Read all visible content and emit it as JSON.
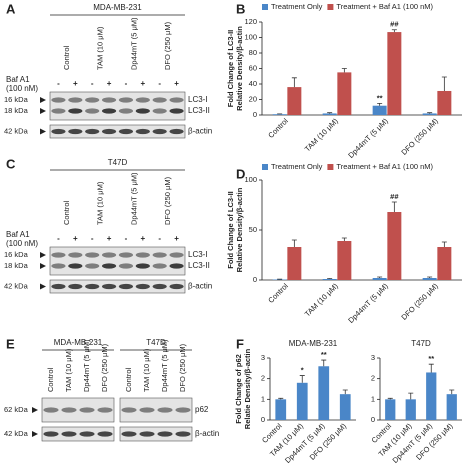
{
  "blots": [
    {
      "letter": "A",
      "groups": [
        {
          "cell_line": "MDA-MB-231",
          "lanes": [
            "Control",
            "TAM (10 μM)",
            "Dp44mT (5 μM)",
            "DFO (250 μM)"
          ]
        }
      ],
      "baf_label": [
        "Baf A1",
        "(100 nM)"
      ],
      "baf_signs": [
        "-",
        "+",
        "-",
        "+",
        "-",
        "+",
        "-",
        "+"
      ],
      "markers": [
        "16 kDa",
        "18 kDa",
        "42 kDa"
      ],
      "bands": [
        "LC3-I",
        "LC3-II",
        "β-actin"
      ]
    },
    {
      "letter": "C",
      "groups": [
        {
          "cell_line": "T47D",
          "lanes": [
            "Control",
            "TAM (10 μM)",
            "Dp44mT (5 μM)",
            "DFO (250 μM)"
          ]
        }
      ],
      "baf_label": [
        "Baf A1",
        "(100 nM)"
      ],
      "baf_signs": [
        "-",
        "+",
        "-",
        "+",
        "-",
        "+",
        "-",
        "+"
      ],
      "markers": [
        "16 kDa",
        "18 kDa",
        "42 kDa"
      ],
      "bands": [
        "LC3-I",
        "LC3-II",
        "β-actin"
      ]
    },
    {
      "letter": "E",
      "groups": [
        {
          "cell_line": "MDA-MB-231",
          "lanes": [
            "Control",
            "TAM (10 μM)",
            "Dp44mT (5 μM)",
            "DFO (250 μM)"
          ]
        },
        {
          "cell_line": "T47D",
          "lanes": [
            "Control",
            "TAM (10 μM)",
            "Dp44mT (5 μM)",
            "DFO (250 μM)"
          ]
        }
      ],
      "markers": [
        "62 kDa",
        "42 kDa"
      ],
      "bands": [
        "p62",
        "β-actin"
      ]
    }
  ],
  "chart_data": [
    {
      "type": "bar",
      "letter": "B",
      "y_label": [
        "Fold Change of LC3-II",
        "Relative Density/β-actin"
      ],
      "categories": [
        "Control",
        "TAM (10 μM)",
        "Dp44mT (5 μM)",
        "DFO (250 μM)"
      ],
      "series": [
        {
          "name": "Treatment Only",
          "color": "#4a86c8",
          "values": [
            1,
            2,
            12,
            2
          ],
          "errors": [
            0.5,
            1,
            3,
            1
          ],
          "annotations": [
            null,
            null,
            "**",
            null
          ]
        },
        {
          "name": "Treatment + Baf A1 (100 nM)",
          "color": "#c0504d",
          "values": [
            36,
            55,
            107,
            31
          ],
          "errors": [
            12,
            5,
            3,
            18
          ],
          "annotations": [
            null,
            null,
            "##",
            null
          ]
        }
      ],
      "ylim": [
        0,
        120
      ],
      "yticks": [
        0,
        20,
        40,
        60,
        80,
        100,
        120
      ]
    },
    {
      "type": "bar",
      "letter": "D",
      "y_label": [
        "Fold Change of LC3-II",
        "Relative Density/β-actin"
      ],
      "categories": [
        "Control",
        "TAM (10 μM)",
        "Dp44mT (5 μM)",
        "DFO (250 μM)"
      ],
      "series": [
        {
          "name": "Treatment Only",
          "color": "#4a86c8",
          "values": [
            0.5,
            1,
            2,
            2
          ],
          "errors": [
            0.3,
            0.5,
            1,
            1
          ],
          "annotations": [
            null,
            null,
            null,
            null
          ]
        },
        {
          "name": "Treatment + Baf A1 (100 nM)",
          "color": "#c0504d",
          "values": [
            33,
            39,
            68,
            33
          ],
          "errors": [
            7,
            3,
            10,
            5
          ],
          "annotations": [
            null,
            null,
            "##",
            null
          ]
        }
      ],
      "ylim": [
        0,
        100
      ],
      "yticks": [
        0,
        50,
        100
      ]
    },
    {
      "type": "bar",
      "letter": "F",
      "title": "MDA-MB-231",
      "y_label": [
        "Fold Change of p62",
        "Relatie Density/β-actin"
      ],
      "categories": [
        "Control",
        "TAM (10 μM)",
        "Dp44mT (5 μM)",
        "DFO (250 μM)"
      ],
      "color": "#4a86c8",
      "values": [
        1,
        1.8,
        2.6,
        1.25
      ],
      "errors": [
        0.05,
        0.35,
        0.3,
        0.2
      ],
      "annotations": [
        null,
        "*",
        "**",
        null
      ],
      "ylim": [
        0,
        3
      ],
      "yticks": [
        0,
        1,
        2,
        3
      ]
    },
    {
      "type": "bar",
      "title": "T47D",
      "categories": [
        "Control",
        "TAM (10 μM)",
        "Dp44mT (5 μM)",
        "DFO (250 μM)"
      ],
      "color": "#4a86c8",
      "values": [
        1,
        1.0,
        2.3,
        1.25
      ],
      "errors": [
        0.05,
        0.3,
        0.4,
        0.2
      ],
      "annotations": [
        null,
        null,
        "**",
        null
      ],
      "ylim": [
        0,
        3
      ],
      "yticks": [
        0,
        1,
        2,
        3
      ]
    }
  ]
}
